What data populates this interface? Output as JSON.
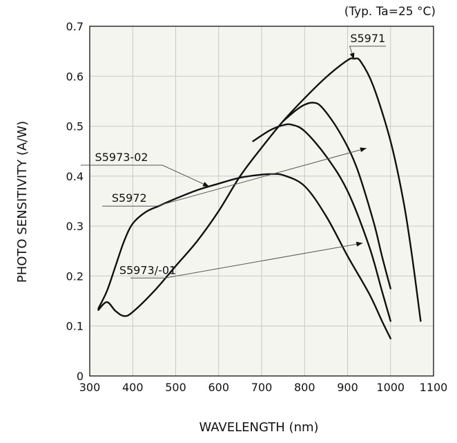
{
  "chart_data": {
    "type": "line",
    "condition_note": "(Typ. Ta=25 °C)",
    "xlabel": "WAVELENGTH (nm)",
    "ylabel": "PHOTO SENSITIVITY (A/W)",
    "xlim": [
      300,
      1100
    ],
    "ylim": [
      0,
      0.7
    ],
    "xticks": [
      300,
      400,
      500,
      600,
      700,
      800,
      900,
      1000,
      1100
    ],
    "yticks": [
      0,
      0.1,
      0.2,
      0.3,
      0.4,
      0.5,
      0.6,
      0.7
    ],
    "xtick_labels": [
      "300",
      "400",
      "500",
      "600",
      "700",
      "800",
      "900",
      "1000",
      "1100"
    ],
    "ytick_labels": [
      "0",
      "0.1",
      "0.2",
      "0.3",
      "0.4",
      "0.5",
      "0.6",
      "0.7"
    ],
    "grid": true,
    "line_color": "#111111",
    "grid_color": "#c8c8c8",
    "background_color": "#f5f5ef",
    "series": [
      {
        "name": "S5971",
        "points": [
          [
            320,
            0.132
          ],
          [
            340,
            0.148
          ],
          [
            360,
            0.13
          ],
          [
            380,
            0.12
          ],
          [
            400,
            0.128
          ],
          [
            450,
            0.17
          ],
          [
            500,
            0.22
          ],
          [
            550,
            0.27
          ],
          [
            600,
            0.33
          ],
          [
            650,
            0.4
          ],
          [
            700,
            0.457
          ],
          [
            750,
            0.51
          ],
          [
            800,
            0.556
          ],
          [
            850,
            0.598
          ],
          [
            900,
            0.632
          ],
          [
            915,
            0.635
          ],
          [
            930,
            0.63
          ],
          [
            960,
            0.58
          ],
          [
            1000,
            0.47
          ],
          [
            1030,
            0.35
          ],
          [
            1050,
            0.24
          ],
          [
            1070,
            0.11
          ]
        ]
      },
      {
        "name": "S5972",
        "points": [
          [
            750,
            0.51
          ],
          [
            780,
            0.532
          ],
          [
            800,
            0.543
          ],
          [
            820,
            0.547
          ],
          [
            840,
            0.538
          ],
          [
            880,
            0.49
          ],
          [
            920,
            0.42
          ],
          [
            960,
            0.31
          ],
          [
            980,
            0.24
          ],
          [
            1000,
            0.175
          ]
        ]
      },
      {
        "name": "S5973/-01",
        "points": [
          [
            680,
            0.47
          ],
          [
            720,
            0.492
          ],
          [
            750,
            0.502
          ],
          [
            770,
            0.503
          ],
          [
            800,
            0.49
          ],
          [
            850,
            0.44
          ],
          [
            900,
            0.37
          ],
          [
            950,
            0.26
          ],
          [
            980,
            0.17
          ],
          [
            1000,
            0.11
          ]
        ]
      },
      {
        "name": "S5973-02",
        "points": [
          [
            320,
            0.135
          ],
          [
            340,
            0.17
          ],
          [
            360,
            0.22
          ],
          [
            380,
            0.27
          ],
          [
            400,
            0.305
          ],
          [
            430,
            0.328
          ],
          [
            460,
            0.34
          ],
          [
            500,
            0.355
          ],
          [
            550,
            0.372
          ],
          [
            600,
            0.385
          ],
          [
            650,
            0.397
          ],
          [
            700,
            0.403
          ],
          [
            720,
            0.404
          ],
          [
            750,
            0.402
          ],
          [
            800,
            0.38
          ],
          [
            850,
            0.32
          ],
          [
            900,
            0.24
          ],
          [
            950,
            0.165
          ],
          [
            980,
            0.11
          ],
          [
            1000,
            0.075
          ]
        ]
      }
    ],
    "annotations": [
      {
        "text": "S5971",
        "x": 947,
        "y": 0.66,
        "target": [
          915,
          0.634
        ],
        "underline_from": 905
      },
      {
        "text": "S5973-02",
        "x": 374,
        "y": 0.422,
        "target": [
          578,
          0.379
        ],
        "underline_from": 469
      },
      {
        "text": "S5972",
        "x": 392,
        "y": 0.34,
        "target": [
          944,
          0.456
        ],
        "underline_from": 455
      },
      {
        "text": "S5973/-01",
        "x": 435,
        "y": 0.196,
        "target": [
          935,
          0.266
        ],
        "underline_from": 475
      }
    ]
  }
}
